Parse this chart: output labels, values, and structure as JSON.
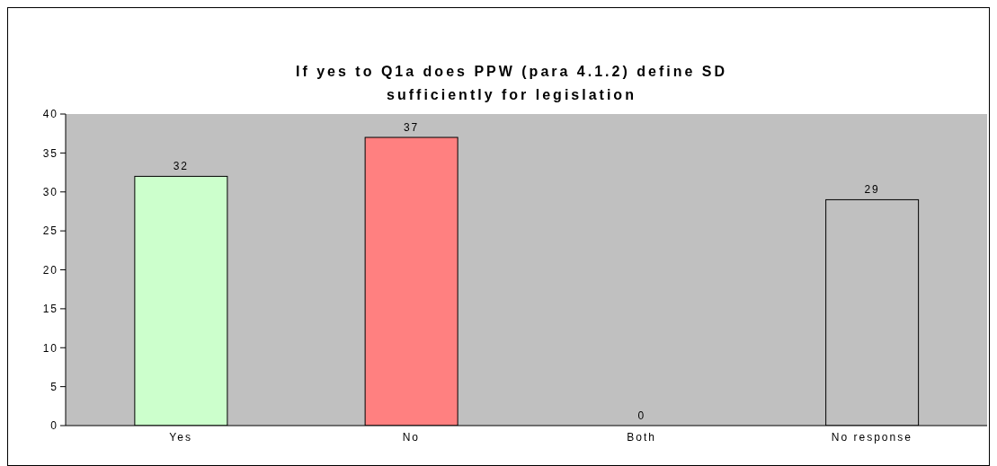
{
  "chart_data": {
    "type": "bar",
    "title": "If yes to Q1a does PPW (para 4.1.2) define SD sufficiently for legislation",
    "categories": [
      "Yes",
      "No",
      "Both",
      "No response"
    ],
    "values": [
      32,
      37,
      0,
      29
    ],
    "colors": [
      "#ccffcc",
      "#ff8080",
      "#c0c0c0",
      "#c0c0c0"
    ],
    "ylim": [
      0,
      40
    ],
    "yticks": [
      0,
      5,
      10,
      15,
      20,
      25,
      30,
      35,
      40
    ],
    "grid": false,
    "data_labels": true
  }
}
